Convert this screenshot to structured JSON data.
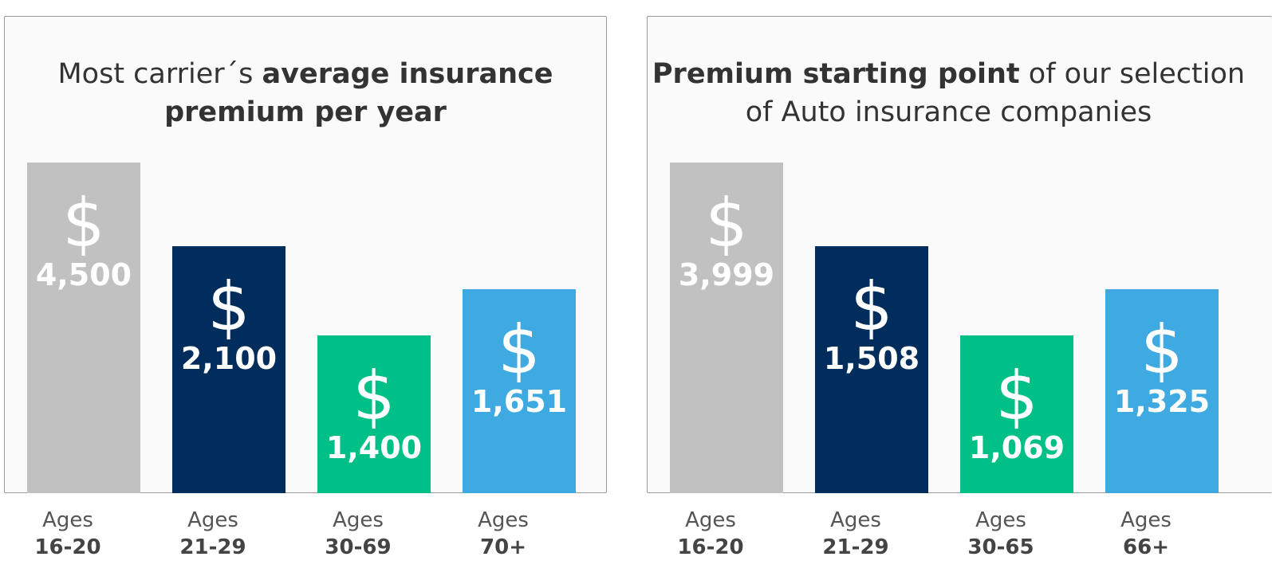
{
  "colors": {
    "panel_bg": "#fafafa",
    "bars": [
      "#c1c1c1",
      "#002d5c",
      "#00c088",
      "#3fa9e2"
    ]
  },
  "chart_data": [
    {
      "type": "bar",
      "title_parts": [
        {
          "text": "Most carrier´s ",
          "bold": false
        },
        {
          "text": "average insurance",
          "bold": true
        },
        {
          "text": "\n",
          "bold": false
        },
        {
          "text": "premium per year",
          "bold": true
        }
      ],
      "currency_symbol": "$",
      "categories_prefix": "Ages",
      "categories": [
        "16-20",
        "21-29",
        "30-69",
        "70+"
      ],
      "values": [
        4500,
        2100,
        1400,
        1651
      ],
      "value_labels": [
        "4,500",
        "2,100",
        "1,400",
        "1,651"
      ]
    },
    {
      "type": "bar",
      "title_parts": [
        {
          "text": "Premium starting point",
          "bold": true
        },
        {
          "text": " of our selection",
          "bold": false
        },
        {
          "text": "\n",
          "bold": false
        },
        {
          "text": "of Auto insurance companies",
          "bold": false
        }
      ],
      "currency_symbol": "$",
      "categories_prefix": "Ages",
      "categories": [
        "16-20",
        "21-29",
        "30-65",
        "66+"
      ],
      "values": [
        3999,
        1508,
        1069,
        1325
      ],
      "value_labels": [
        "3,999",
        "1,508",
        "1,069",
        "1,325"
      ]
    }
  ]
}
